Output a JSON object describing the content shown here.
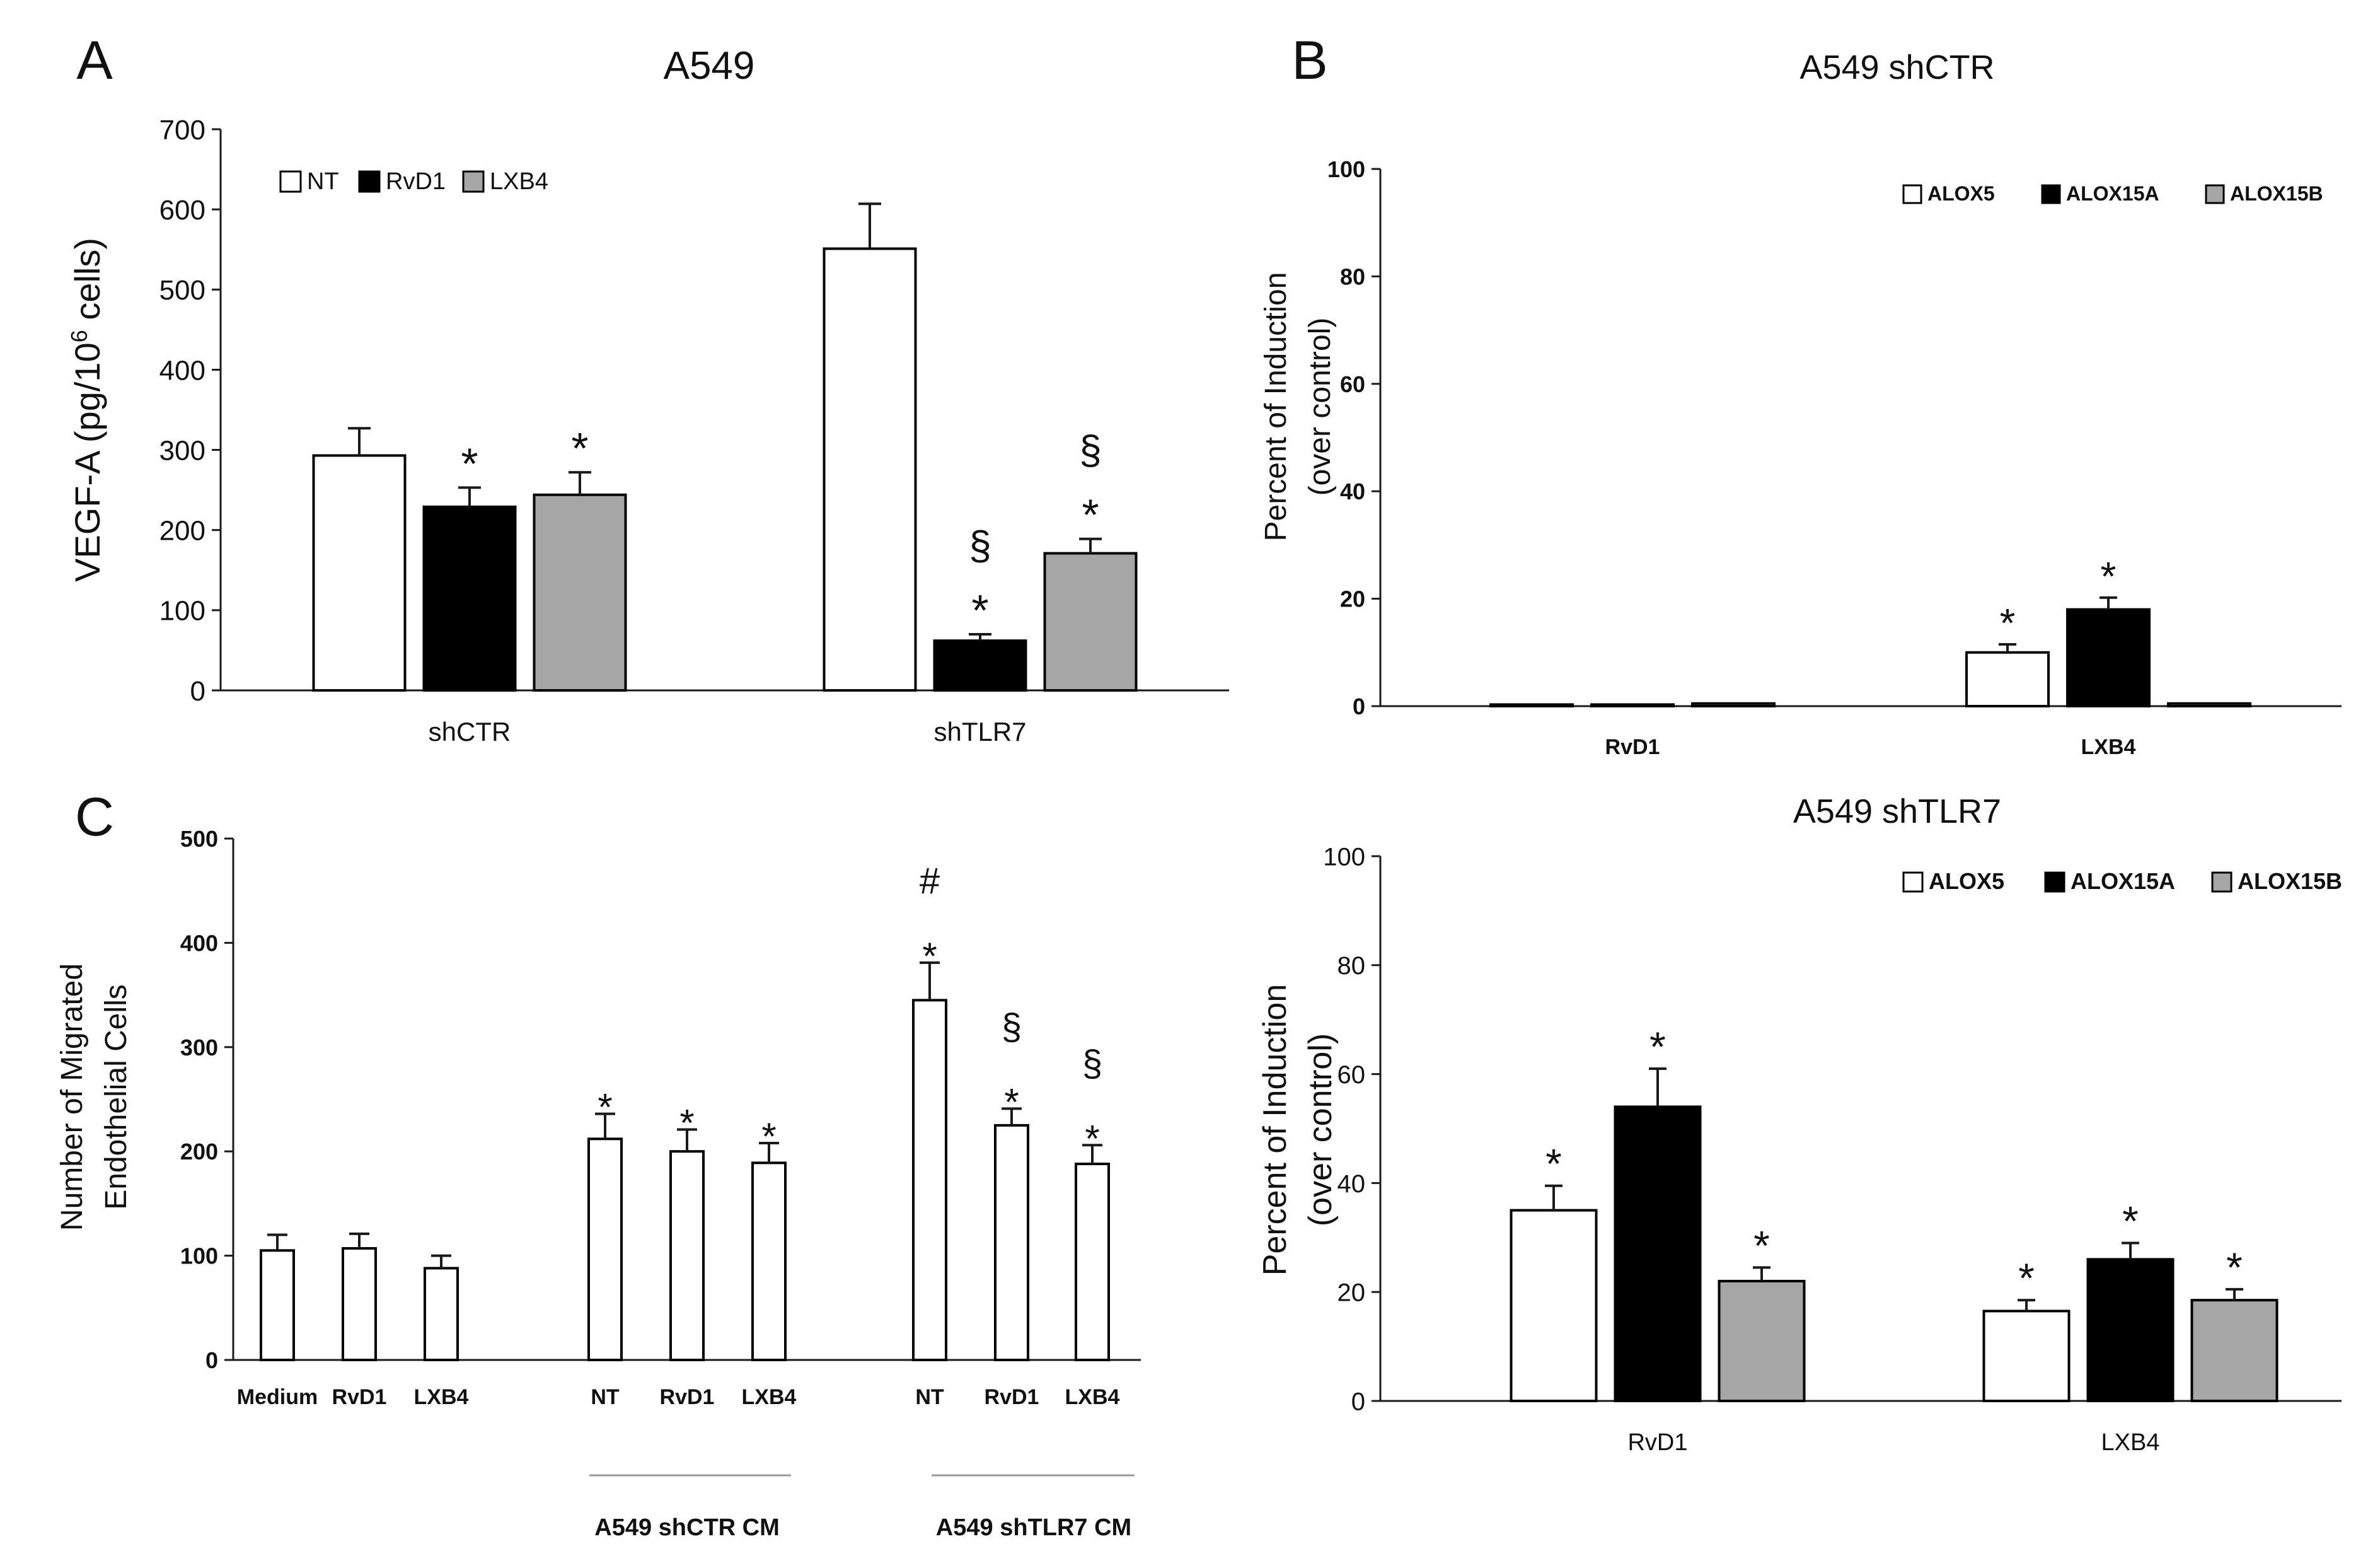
{
  "colors": {
    "nt": "#ffffff",
    "rvd1": "#000000",
    "lxb4": "#a6a6a6",
    "axis": "#1a1a1a"
  },
  "chart_data": [
    {
      "id": "A",
      "panel_letter": "A",
      "type": "bar",
      "title": "A549",
      "ylabel": "VEGF-A (pg/10",
      "ylabel_sup": "6",
      "ylabel_tail": " cells)",
      "xlabel": "",
      "ylim": [
        0,
        700
      ],
      "yticks": [
        "0",
        "100",
        "200",
        "300",
        "400",
        "500",
        "600",
        "700"
      ],
      "categories": [
        "shCTR",
        "shTLR7"
      ],
      "legend_position": "top-left",
      "series": [
        {
          "name": "NT",
          "color": "#ffffff",
          "values": [
            293,
            551
          ],
          "errors": [
            34,
            56
          ],
          "marks": [
            "",
            ""
          ]
        },
        {
          "name": "RvD1",
          "color": "#000000",
          "values": [
            229,
            62
          ],
          "errors": [
            24,
            8
          ],
          "marks": [
            "*",
            "*|§"
          ]
        },
        {
          "name": "LXB4",
          "color": "#a6a6a6",
          "values": [
            244,
            171
          ],
          "errors": [
            28,
            18
          ],
          "marks": [
            "*",
            "*|§"
          ]
        }
      ]
    },
    {
      "id": "B1",
      "panel_letter": "B",
      "type": "bar",
      "title": "A549  shCTR",
      "ylabel": "Percent of Induction",
      "ylabel2": "(over control)",
      "ylim": [
        0,
        100
      ],
      "yticks": [
        "0",
        "20",
        "40",
        "60",
        "80",
        "100"
      ],
      "categories": [
        "RvD1",
        "LXB4"
      ],
      "legend_position": "top-right",
      "series": [
        {
          "name": "ALOX5",
          "color": "#ffffff",
          "values": [
            0.3,
            10
          ],
          "errors": [
            0,
            1.5
          ],
          "marks": [
            "",
            "*"
          ]
        },
        {
          "name": "ALOX15A",
          "color": "#000000",
          "values": [
            0.3,
            18
          ],
          "errors": [
            0,
            2.2
          ],
          "marks": [
            "",
            "*"
          ]
        },
        {
          "name": "ALOX15B",
          "color": "#a6a6a6",
          "values": [
            0.5,
            0.5
          ],
          "errors": [
            0,
            0
          ],
          "marks": [
            "",
            ""
          ]
        }
      ]
    },
    {
      "id": "B2",
      "panel_letter": "",
      "type": "bar",
      "title": "A549 shTLR7",
      "ylabel": "Percent of Induction",
      "ylabel2": "(over control)",
      "ylim": [
        0,
        100
      ],
      "yticks": [
        "0",
        "20",
        "40",
        "60",
        "80",
        "100"
      ],
      "categories": [
        "RvD1",
        "LXB4"
      ],
      "legend_position": "top-right",
      "series": [
        {
          "name": "ALOX5",
          "color": "#ffffff",
          "values": [
            35,
            16.5
          ],
          "errors": [
            4.5,
            2
          ],
          "marks": [
            "*",
            "*"
          ]
        },
        {
          "name": "ALOX15A",
          "color": "#000000",
          "values": [
            54,
            26
          ],
          "errors": [
            7,
            3
          ],
          "marks": [
            "*",
            "*"
          ]
        },
        {
          "name": "ALOX15B",
          "color": "#a6a6a6",
          "values": [
            22,
            18.5
          ],
          "errors": [
            2.5,
            2
          ],
          "marks": [
            "*",
            "*"
          ]
        }
      ]
    },
    {
      "id": "C",
      "panel_letter": "C",
      "type": "bar",
      "title": "",
      "ylabel": "Number of Migrated",
      "ylabel2": "Endothelial Cells",
      "ylim": [
        0,
        500
      ],
      "yticks": [
        "0",
        "100",
        "200",
        "300",
        "400",
        "500"
      ],
      "bars": [
        {
          "label": "Medium",
          "value": 105,
          "error": 15,
          "marks": []
        },
        {
          "label": "RvD1",
          "value": 107,
          "error": 14,
          "marks": []
        },
        {
          "label": "LXB4",
          "value": 88,
          "error": 12,
          "marks": []
        },
        {
          "label": "NT",
          "value": 212,
          "error": 24,
          "marks": [
            "*"
          ]
        },
        {
          "label": "RvD1",
          "value": 200,
          "error": 21,
          "marks": [
            "*"
          ]
        },
        {
          "label": "LXB4",
          "value": 189,
          "error": 19,
          "marks": [
            "*"
          ]
        },
        {
          "label": "NT",
          "value": 345,
          "error": 36,
          "marks": [
            "*",
            "#"
          ]
        },
        {
          "label": "RvD1",
          "value": 225,
          "error": 16,
          "marks": [
            "*",
            "§"
          ]
        },
        {
          "label": "LXB4",
          "value": 188,
          "error": 18,
          "marks": [
            "*",
            "§"
          ]
        }
      ],
      "groups": [
        "A549 shCTR CM",
        "A549 shTLR7 CM"
      ]
    }
  ]
}
